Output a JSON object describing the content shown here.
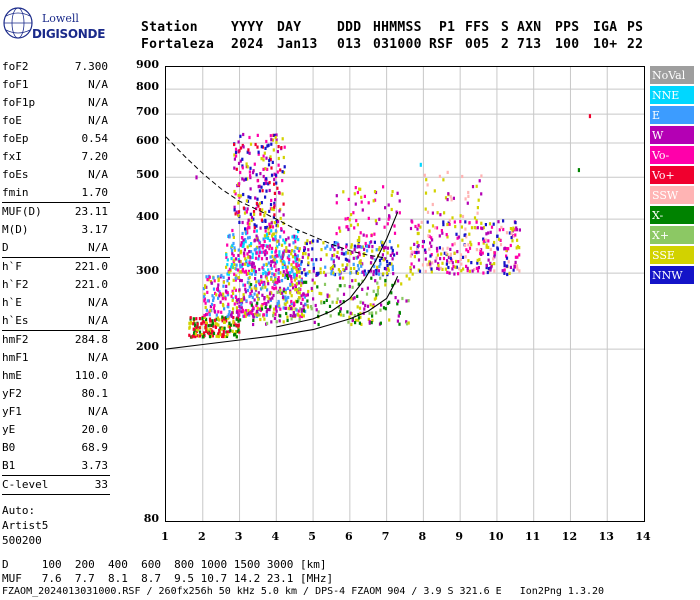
{
  "logo": {
    "word_top": "Lowell",
    "word_bottom": "DIGISONDE"
  },
  "header": {
    "labels": [
      "Station",
      "YYYY",
      "DAY",
      "DDD",
      "HHMMSS",
      "P1",
      "FFS",
      "S",
      "AXN",
      "PPS",
      "IGA",
      "PS"
    ],
    "values": [
      "Fortaleza",
      "2024",
      "Jan13",
      "013",
      "031000",
      "RSF",
      "005",
      "2",
      "713",
      "100",
      "10+",
      "22"
    ]
  },
  "params": {
    "group1": [
      {
        "k": "foF2",
        "v": "7.300"
      },
      {
        "k": "foF1",
        "v": "N/A"
      },
      {
        "k": "foF1p",
        "v": "N/A"
      },
      {
        "k": "foE",
        "v": "N/A"
      },
      {
        "k": "foEp",
        "v": "0.54"
      },
      {
        "k": "fxI",
        "v": "7.20"
      },
      {
        "k": "foEs",
        "v": "N/A"
      },
      {
        "k": "fmin",
        "v": "1.70"
      }
    ],
    "group2": [
      {
        "k": "MUF(D)",
        "v": "23.11"
      },
      {
        "k": "M(D)",
        "v": "3.17"
      },
      {
        "k": "D",
        "v": "N/A"
      }
    ],
    "group3": [
      {
        "k": "h`F",
        "v": "221.0"
      },
      {
        "k": "h`F2",
        "v": "221.0"
      },
      {
        "k": "h`E",
        "v": "N/A"
      },
      {
        "k": "h`Es",
        "v": "N/A"
      }
    ],
    "group4": [
      {
        "k": "hmF2",
        "v": "284.8"
      },
      {
        "k": "hmF1",
        "v": "N/A"
      },
      {
        "k": "hmE",
        "v": "110.0"
      },
      {
        "k": "yF2",
        "v": "80.1"
      },
      {
        "k": "yF1",
        "v": "N/A"
      },
      {
        "k": "yE",
        "v": "20.0"
      },
      {
        "k": "B0",
        "v": "68.9"
      },
      {
        "k": "B1",
        "v": "3.73"
      }
    ],
    "group5": [
      {
        "k": "C-level",
        "v": "33"
      }
    ],
    "autoscale": [
      "Auto:",
      "Artist5",
      "500200"
    ]
  },
  "legend": [
    {
      "label": "NoVal",
      "bg": "#9e9e9e",
      "fg": "#ffffff"
    },
    {
      "label": "NNE",
      "bg": "#00d7ff",
      "fg": "#ffffff"
    },
    {
      "label": "E",
      "bg": "#3c9cff",
      "fg": "#ffffff"
    },
    {
      "label": "W",
      "bg": "#b400b4",
      "fg": "#ffffff"
    },
    {
      "label": "Vo-",
      "bg": "#ff00aa",
      "fg": "#ffffff"
    },
    {
      "label": "Vo+",
      "bg": "#f0002e",
      "fg": "#ffffff"
    },
    {
      "label": "SSW",
      "bg": "#ffb4b4",
      "fg": "#ffffff"
    },
    {
      "label": "X-",
      "bg": "#008200",
      "fg": "#ffffff"
    },
    {
      "label": "X+",
      "bg": "#8cc864",
      "fg": "#ffffff"
    },
    {
      "label": "SSE",
      "bg": "#d2d200",
      "fg": "#ffffff"
    },
    {
      "label": "NNW",
      "bg": "#1414c8",
      "fg": "#ffffff"
    }
  ],
  "chart_data": {
    "type": "scatter",
    "ylim": [
      80,
      900
    ],
    "xlim": [
      1,
      14
    ],
    "yticks": [
      80,
      200,
      300,
      400,
      500,
      600,
      700,
      800,
      900
    ],
    "xticks": [
      1,
      2,
      3,
      4,
      5,
      6,
      7,
      8,
      9,
      10,
      11,
      12,
      13,
      14
    ],
    "grid": true,
    "y_scale": "log",
    "clusters": [
      {
        "x": [
          1.6,
          3.0
        ],
        "y": [
          215,
          240
        ],
        "colors": [
          "#f0002e",
          "#008200",
          "#d2d200"
        ],
        "n": 180
      },
      {
        "x": [
          2.0,
          4.8
        ],
        "y": [
          240,
          300
        ],
        "colors": [
          "#b400b4",
          "#3c9cff",
          "#d2d200",
          "#ff00aa"
        ],
        "n": 380
      },
      {
        "x": [
          2.6,
          4.6
        ],
        "y": [
          300,
          380
        ],
        "colors": [
          "#3c9cff",
          "#00d7ff",
          "#b400b4",
          "#d2d200",
          "#ff00aa"
        ],
        "n": 320
      },
      {
        "x": [
          2.8,
          4.2
        ],
        "y": [
          380,
          640
        ],
        "colors": [
          "#b400b4",
          "#ff00aa",
          "#d2d200",
          "#f0002e",
          "#1414c8"
        ],
        "n": 230
      },
      {
        "x": [
          3.2,
          7.6
        ],
        "y": [
          230,
          300
        ],
        "colors": [
          "#008200",
          "#8cc864",
          "#d2d200",
          "#b400b4"
        ],
        "n": 220
      },
      {
        "x": [
          4.5,
          7.2
        ],
        "y": [
          300,
          360
        ],
        "colors": [
          "#d2d200",
          "#b400b4",
          "#3c9cff",
          "#1414c8"
        ],
        "n": 210
      },
      {
        "x": [
          5.6,
          7.4
        ],
        "y": [
          330,
          480
        ],
        "colors": [
          "#d2d200",
          "#ff00aa",
          "#b400b4"
        ],
        "n": 80
      },
      {
        "x": [
          7.6,
          10.6
        ],
        "y": [
          300,
          400
        ],
        "colors": [
          "#d2d200",
          "#b400b4",
          "#ff00aa",
          "#ffb4b4",
          "#1414c8"
        ],
        "n": 300
      },
      {
        "x": [
          8.0,
          9.6
        ],
        "y": [
          400,
          520
        ],
        "colors": [
          "#d2d200",
          "#ffb4b4",
          "#b400b4"
        ],
        "n": 40
      }
    ],
    "isolated_points": [
      {
        "x": 12.5,
        "y": 700,
        "color": "#f0002e"
      },
      {
        "x": 12.2,
        "y": 525,
        "color": "#008200"
      },
      {
        "x": 7.9,
        "y": 540,
        "color": "#00d7ff"
      },
      {
        "x": 1.8,
        "y": 505,
        "color": "#b400b4"
      }
    ],
    "curves": {
      "virtual_height_dashed": [
        [
          1.0,
          620
        ],
        [
          1.5,
          560
        ],
        [
          2.0,
          510
        ],
        [
          2.5,
          470
        ],
        [
          3.0,
          440
        ],
        [
          3.5,
          420
        ],
        [
          4.0,
          400
        ],
        [
          4.5,
          380
        ],
        [
          5.0,
          365
        ],
        [
          5.5,
          350
        ],
        [
          6.0,
          338
        ],
        [
          6.5,
          330
        ],
        [
          7.0,
          325
        ]
      ],
      "profile_solid_lower": [
        [
          1.0,
          200
        ],
        [
          2.0,
          205
        ],
        [
          3.0,
          210
        ],
        [
          4.0,
          215
        ],
        [
          5.0,
          222
        ],
        [
          6.0,
          235
        ],
        [
          6.5,
          245
        ],
        [
          7.0,
          262
        ],
        [
          7.2,
          282
        ],
        [
          7.3,
          295
        ]
      ],
      "profile_solid_upper": [
        [
          4.0,
          225
        ],
        [
          5.0,
          235
        ],
        [
          5.5,
          245
        ],
        [
          6.0,
          262
        ],
        [
          6.4,
          290
        ],
        [
          6.7,
          320
        ],
        [
          7.0,
          360
        ],
        [
          7.3,
          415
        ]
      ]
    }
  },
  "bottom": {
    "d_row": "D     100  200  400  600  800 1000 1500 3000 [km]",
    "muf_row": "MUF   7.6  7.7  8.1  8.7  9.5 10.7 14.2 23.1 [MHz]",
    "footer": "FZAOM_2024013031000.RSF / 260fx256h 50 kHz 5.0 km / DPS-4 FZAOM 904 / 3.9 S 321.6 E   Ion2Png 1.3.20"
  }
}
